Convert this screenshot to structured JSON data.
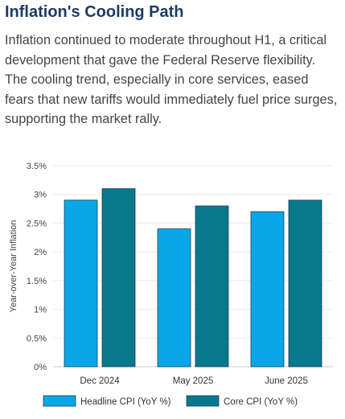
{
  "section": {
    "title": "Inflation's Cooling Path",
    "description": "Inflation continued to moderate throughout H1, a critical development that gave the Federal Reserve flexibility. The cooling trend, especially in core services, eased fears that new tariffs would immediately fuel price surges, supporting the market rally."
  },
  "colors": {
    "title": "#1d3b66",
    "headline": "#0aa7e6",
    "core": "#08788c"
  },
  "chart_data": {
    "type": "bar",
    "categories": [
      "Dec 2024",
      "May 2025",
      "June 2025"
    ],
    "series": [
      {
        "name": "Headline CPI (YoY %)",
        "values": [
          2.9,
          2.4,
          2.7
        ]
      },
      {
        "name": "Core CPI (YoY %)",
        "values": [
          3.1,
          2.8,
          2.9
        ]
      }
    ],
    "ylabel": "Year-over-Year Inflation",
    "ylim": [
      0,
      3.5
    ],
    "yticks": [
      "0%",
      "0.5%",
      "1%",
      "1.5%",
      "2%",
      "2.5%",
      "3%",
      "3.5%"
    ],
    "grid": true,
    "legend": "bottom"
  }
}
